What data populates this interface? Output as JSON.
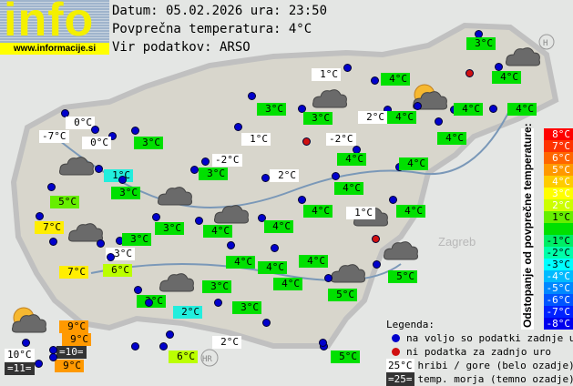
{
  "logo": {
    "text": "info",
    "url": "www.informacije.si"
  },
  "header": {
    "date_line": "Datum: 05.02.2026 ura: 23:50",
    "avg_line": "Povprečna temperatura: 4°C",
    "source_line": "Vir podatkov: ARSO"
  },
  "colors": {
    "green": "#00e000",
    "light_green": "#66ee00",
    "yellow_green": "#bbff00",
    "yellow": "#ffee00",
    "orange": "#ff9900",
    "cyan": "#22eedd",
    "white": "#ffffff",
    "dark": "#333333",
    "station_dot": "#0000cc",
    "missing_dot": "#d01010"
  },
  "stations": [
    {
      "t": "3°C",
      "c": "green"
    },
    {
      "t": "4°C",
      "c": "green"
    },
    {
      "t": "1°C",
      "c": "white"
    },
    {
      "t": "4°C",
      "c": "green"
    },
    {
      "t": "3°C",
      "c": "green"
    },
    {
      "t": "3°C",
      "c": "green"
    },
    {
      "t": "2°C",
      "c": "white"
    },
    {
      "t": "4°C",
      "c": "green"
    },
    {
      "t": "4°C",
      "c": "green"
    },
    {
      "t": "4°C",
      "c": "green"
    },
    {
      "t": "0°C",
      "c": "white"
    },
    {
      "t": "-7°C",
      "c": "white"
    },
    {
      "t": "0°C",
      "c": "white"
    },
    {
      "t": "3°C",
      "c": "green"
    },
    {
      "t": "1°C",
      "c": "white"
    },
    {
      "t": "-2°C",
      "c": "white"
    },
    {
      "t": "4°C",
      "c": "green"
    },
    {
      "t": "4°C",
      "c": "green"
    },
    {
      "t": "1°C",
      "c": "cyan"
    },
    {
      "t": "-2°C",
      "c": "white"
    },
    {
      "t": "3°C",
      "c": "green"
    },
    {
      "t": "4°C",
      "c": "green"
    },
    {
      "t": "4°C",
      "c": "green"
    },
    {
      "t": "2°C",
      "c": "white"
    },
    {
      "t": "3°C",
      "c": "green"
    },
    {
      "t": "4°C",
      "c": "green"
    },
    {
      "t": "5°C",
      "c": "light_green"
    },
    {
      "t": "4°C",
      "c": "green"
    },
    {
      "t": "1°C",
      "c": "white"
    },
    {
      "t": "4°C",
      "c": "green"
    },
    {
      "t": "7°C",
      "c": "yellow"
    },
    {
      "t": "3°C",
      "c": "green"
    },
    {
      "t": "4°C",
      "c": "green"
    },
    {
      "t": "4°C",
      "c": "green"
    },
    {
      "t": "3°C",
      "c": "green"
    },
    {
      "t": "3°C",
      "c": "white"
    },
    {
      "t": "4°C",
      "c": "green"
    },
    {
      "t": "4°C",
      "c": "green"
    },
    {
      "t": "4°C",
      "c": "green"
    },
    {
      "t": "7°C",
      "c": "yellow"
    },
    {
      "t": "6°C",
      "c": "yellow_green"
    },
    {
      "t": "5°C",
      "c": "green"
    },
    {
      "t": "3°C",
      "c": "green"
    },
    {
      "t": "5°C",
      "c": "green"
    },
    {
      "t": "3°C",
      "c": "green"
    },
    {
      "t": "2°C",
      "c": "cyan"
    },
    {
      "t": "3°C",
      "c": "green"
    },
    {
      "t": "9°C",
      "c": "orange"
    },
    {
      "t": "9°C",
      "c": "orange"
    },
    {
      "t": "=10=",
      "c": "dark"
    },
    {
      "t": "10°C",
      "c": "white"
    },
    {
      "t": "=11=",
      "c": "dark"
    },
    {
      "t": "9°C",
      "c": "orange"
    },
    {
      "t": "6°C",
      "c": "yellow_green"
    },
    {
      "t": "2°C",
      "c": "white"
    },
    {
      "t": "5°C",
      "c": "green"
    }
  ],
  "scale": {
    "title": "Odstopanje od povprečne temperature:",
    "steps": [
      {
        "t": "8°C",
        "bg": "#ff0000"
      },
      {
        "t": "7°C",
        "bg": "#ff3300"
      },
      {
        "t": "6°C",
        "bg": "#ff6600"
      },
      {
        "t": "5°C",
        "bg": "#ff9900"
      },
      {
        "t": "4°C",
        "bg": "#ffcc00"
      },
      {
        "t": "3°C",
        "bg": "#ffff00"
      },
      {
        "t": "2°C",
        "bg": "#ccff00"
      },
      {
        "t": "1°C",
        "bg": "#66ee00"
      },
      {
        "t": "",
        "bg": "#00e000"
      },
      {
        "t": "-1°C",
        "bg": "#00ee66"
      },
      {
        "t": "-2°C",
        "bg": "#00ffaa"
      },
      {
        "t": "-3°C",
        "bg": "#00ffff"
      },
      {
        "t": "-4°C",
        "bg": "#00bbff"
      },
      {
        "t": "-5°C",
        "bg": "#0088ff"
      },
      {
        "t": "-6°C",
        "bg": "#0055ff"
      },
      {
        "t": "-7°C",
        "bg": "#0022ff"
      },
      {
        "t": "-8°C",
        "bg": "#0000ee"
      }
    ]
  },
  "legend": {
    "title": "Legenda:",
    "available": "na voljo so podatki zadnje ure",
    "missing": "ni podatka za zadnjo uro",
    "mountain_sample": "25°C",
    "mountain": "hribi / gore (belo ozadje)",
    "sea_sample": "=25=",
    "sea": "temp. morja (temno ozadje)"
  },
  "map_labels": {
    "zagreb": "Zagreb",
    "hr": "HR",
    "h": "H"
  }
}
